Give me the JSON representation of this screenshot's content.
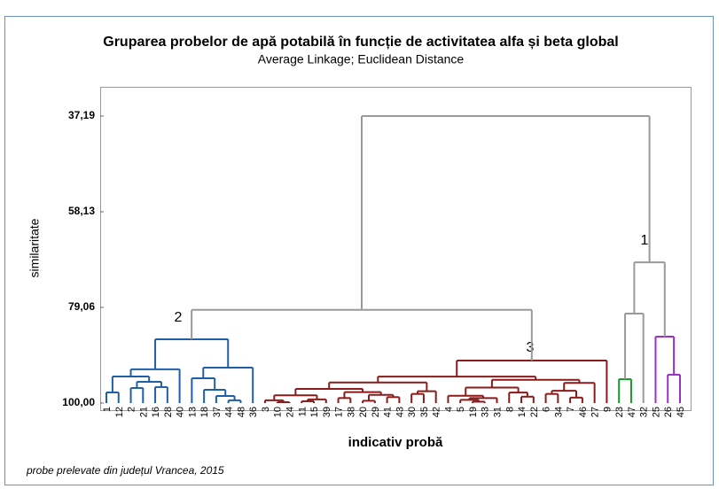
{
  "chart_data": {
    "type": "dendrogram",
    "title": "Gruparea probelor de apă potabilă în funcție de activitatea alfa și beta global",
    "subtitle": "Average Linkage; Euclidean Distance",
    "y_label": "similaritate",
    "x_label": "indicativ probă",
    "footnote": "probe prelevate din județul Vrancea, 2015",
    "annotations": [
      "1",
      "2",
      "3"
    ],
    "ylim": [
      101.55,
      30.79
    ],
    "yticks": [
      {
        "value": 37.19,
        "label": "37,19"
      },
      {
        "value": 58.13,
        "label": "58,13"
      },
      {
        "value": 79.06,
        "label": "79,06"
      },
      {
        "value": 100,
        "label": "100,00"
      }
    ],
    "categories": [
      "1",
      "12",
      "2",
      "21",
      "16",
      "28",
      "40",
      "13",
      "18",
      "37",
      "44",
      "48",
      "36",
      "3",
      "10",
      "24",
      "11",
      "15",
      "39",
      "17",
      "38",
      "20",
      "29",
      "41",
      "43",
      "30",
      "35",
      "42",
      "4",
      "5",
      "19",
      "33",
      "31",
      "8",
      "14",
      "22",
      "6",
      "34",
      "7",
      "46",
      "27",
      "9",
      "23",
      "47",
      "32",
      "25",
      "26",
      "45"
    ],
    "tree": {
      "height": 37.19,
      "color": "#9a9a9a",
      "children": [
        {
          "height": 79.6,
          "children": [
            {
              "height": 86.04,
              "color": "#1f5fa8",
              "children": [
                {
                  "height": 92.6,
                  "children": [
                    {
                      "height": 94.18,
                      "children": [
                        {
                          "height": 97.67,
                          "children": [
                            0,
                            1
                          ]
                        },
                        {
                          "height": 95.35,
                          "children": [
                            {
                              "height": 96.7,
                              "children": [
                                2,
                                3
                              ]
                            },
                            {
                              "height": 96.5,
                              "children": [
                                4,
                                5
                              ]
                            }
                          ]
                        }
                      ]
                    },
                    6
                  ]
                },
                {
                  "height": 92.25,
                  "children": [
                    {
                      "height": 94.57,
                      "children": [
                        7,
                        {
                          "height": 97.1,
                          "children": [
                            8,
                            {
                              "height": 98.45,
                              "children": [
                                9,
                                {
                                  "height": 99.4,
                                  "children": [
                                    10,
                                    11
                                  ]
                                }
                              ]
                            }
                          ]
                        }
                      ]
                    },
                    12
                  ]
                }
              ]
            },
            {
              "height": 90.7,
              "color": "#8b1a1a",
              "children": [
                {
                  "height": 94.2,
                  "children": [
                    {
                      "height": 95.5,
                      "children": [
                        {
                          "height": 96.9,
                          "children": [
                            {
                              "height": 98.3,
                              "children": [
                                {
                                  "height": 99.4,
                                  "children": [
                                    13,
                                    {
                                      "height": 99.8,
                                      "children": [
                                        14,
                                        15
                                      ]
                                    }
                                  ]
                                },
                                {
                                  "height": 99.2,
                                  "children": [
                                    {
                                      "height": 99.6,
                                      "children": [
                                        16,
                                        17
                                      ]
                                    },
                                    18
                                  ]
                                }
                              ]
                            },
                            {
                              "height": 97.6,
                              "children": [
                                {
                                  "height": 98.9,
                                  "children": [
                                    19,
                                    20
                                  ]
                                },
                                {
                                  "height": 98.2,
                                  "children": [
                                    {
                                      "height": 99.5,
                                      "children": [
                                        21,
                                        22
                                      ]
                                    },
                                    {
                                      "height": 98.7,
                                      "children": [
                                        23,
                                        24
                                      ]
                                    }
                                  ]
                                }
                              ]
                            }
                          ]
                        },
                        {
                          "height": 97.4,
                          "children": [
                            {
                              "height": 98.0,
                              "children": [
                                25,
                                26
                              ]
                            },
                            27
                          ]
                        }
                      ]
                    },
                    {
                      "height": 94.9,
                      "children": [
                        {
                          "height": 96.6,
                          "children": [
                            {
                              "height": 98.4,
                              "children": [
                                28,
                                {
                                  "height": 98.9,
                                  "children": [
                                    {
                                      "height": 99.3,
                                      "children": [
                                        29,
                                        {
                                          "height": 99.7,
                                          "children": [
                                            30,
                                            31
                                          ]
                                        }
                                      ]
                                    },
                                    32
                                  ]
                                }
                              ]
                            },
                            {
                              "height": 97.7,
                              "children": [
                                33,
                                {
                                  "height": 98.6,
                                  "children": [
                                    34,
                                    35
                                  ]
                                }
                              ]
                            }
                          ]
                        },
                        {
                          "height": 95.6,
                          "children": [
                            {
                              "height": 97.3,
                              "children": [
                                {
                                  "height": 98.0,
                                  "children": [
                                    36,
                                    37
                                  ]
                                },
                                {
                                  "height": 98.8,
                                  "children": [
                                    38,
                                    39
                                  ]
                                }
                              ]
                            },
                            40
                          ]
                        }
                      ]
                    }
                  ]
                },
                41
              ]
            }
          ]
        },
        {
          "height": 69.2,
          "children": [
            {
              "height": 80.42,
              "children": [
                {
                  "height": 94.77,
                  "color": "#1a9a2a",
                  "children": [
                    42,
                    43
                  ]
                },
                44
              ]
            },
            {
              "height": 85.46,
              "color": "#9b2fc9",
              "children": [
                45,
                {
                  "height": 93.8,
                  "children": [
                    46,
                    47
                  ]
                }
              ]
            }
          ]
        }
      ]
    }
  }
}
